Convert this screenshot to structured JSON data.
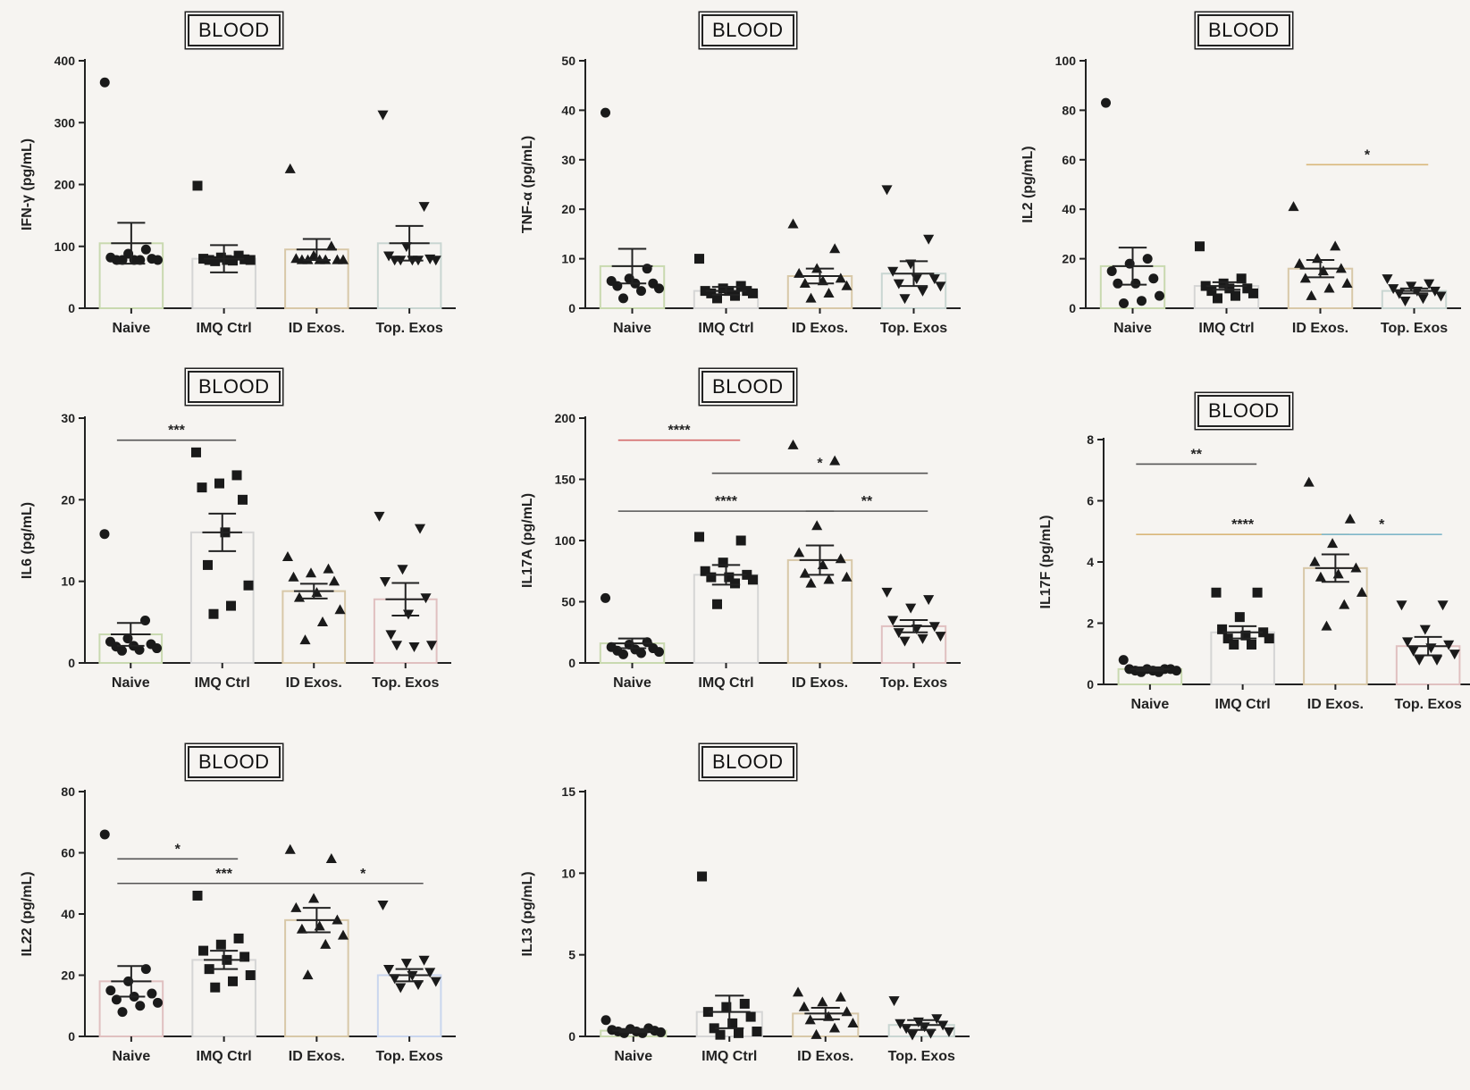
{
  "badge_label": "BLOOD",
  "chart_data": [
    {
      "type": "bar",
      "badge": "BLOOD",
      "ylabel": "IFN-γ (pg/mL)",
      "ylim": [
        0,
        400
      ],
      "yticks": [
        0,
        100,
        200,
        300,
        400
      ],
      "categories": [
        "Naive",
        "IMQ Ctrl",
        "ID Exos.",
        "Top. Exos"
      ],
      "means": [
        105,
        80,
        95,
        105
      ],
      "sem": [
        33,
        22,
        17,
        28
      ],
      "bar_colors": [
        "#c9d9b0",
        "#d5d5d5",
        "#d8c8a8",
        "#c9d6d2"
      ],
      "points": [
        [
          365,
          95,
          88,
          82,
          80,
          78,
          78,
          78,
          78,
          78
        ],
        [
          198,
          85,
          82,
          80,
          79,
          78,
          78,
          78,
          77,
          76
        ],
        [
          225,
          100,
          85,
          80,
          78,
          78,
          78,
          78,
          78,
          78
        ],
        [
          313,
          165,
          100,
          85,
          80,
          78,
          78,
          78,
          78,
          78
        ]
      ],
      "significance": []
    },
    {
      "type": "bar",
      "badge": "BLOOD",
      "ylabel": "TNF-α (pg/mL)",
      "ylim": [
        0,
        50
      ],
      "yticks": [
        0,
        10,
        20,
        30,
        40,
        50
      ],
      "categories": [
        "Naive",
        "IMQ Ctrl",
        "ID Exos.",
        "Top. Exos"
      ],
      "means": [
        8.5,
        3.5,
        6.5,
        7
      ],
      "sem": [
        3.5,
        0.8,
        1.5,
        2.5
      ],
      "bar_colors": [
        "#c9d9b0",
        "#d5d5d5",
        "#d8c8a8",
        "#c9d6d2"
      ],
      "points": [
        [
          39.5,
          8,
          6,
          5.5,
          5,
          5,
          4.5,
          4,
          3.5,
          2
        ],
        [
          10,
          4.5,
          4,
          3.5,
          3.5,
          3.5,
          3,
          3,
          2.5,
          2
        ],
        [
          17,
          12,
          8,
          7,
          6,
          5.5,
          5,
          4.5,
          3,
          2
        ],
        [
          24,
          14,
          9,
          7.5,
          6,
          6,
          5,
          4.5,
          3.5,
          2
        ]
      ],
      "significance": []
    },
    {
      "type": "bar",
      "badge": "BLOOD",
      "ylabel": "IL2 (pg/mL)",
      "ylim": [
        0,
        100
      ],
      "yticks": [
        0,
        20,
        40,
        60,
        80,
        100
      ],
      "categories": [
        "Naive",
        "IMQ Ctrl",
        "ID Exos.",
        "Top. Exos"
      ],
      "means": [
        17,
        9,
        16,
        7
      ],
      "sem": [
        7.5,
        1.5,
        3.5,
        1
      ],
      "bar_colors": [
        "#c9d9b0",
        "#d5d5d5",
        "#d8c8a8",
        "#c9d6d2"
      ],
      "points": [
        [
          83,
          20,
          18,
          15,
          12,
          10,
          10,
          5,
          3,
          2
        ],
        [
          25,
          12,
          10,
          9,
          8,
          8,
          7,
          6,
          5,
          4
        ],
        [
          41,
          25,
          20,
          18,
          16,
          15,
          12,
          10,
          8,
          5
        ],
        [
          12,
          10,
          9,
          8,
          7,
          7,
          6,
          5,
          4,
          3
        ]
      ],
      "significance": [
        {
          "from": 2,
          "to": 3,
          "y": 58,
          "label": "*",
          "color": "#d9b77a"
        }
      ]
    },
    {
      "type": "bar",
      "badge": "BLOOD",
      "ylabel": "IL6 (pg/mL)",
      "ylim": [
        0,
        30
      ],
      "yticks": [
        0,
        10,
        20,
        30
      ],
      "categories": [
        "Naive",
        "IMQ Ctrl",
        "ID Exos.",
        "Top. Exos"
      ],
      "means": [
        3.5,
        16,
        8.8,
        7.8
      ],
      "sem": [
        1.4,
        2.3,
        0.9,
        2
      ],
      "bar_colors": [
        "#c9d9b0",
        "#d5d5d5",
        "#d8c8a8",
        "#e0c0c0"
      ],
      "points": [
        [
          15.8,
          5.2,
          3,
          2.6,
          2.3,
          2.1,
          2,
          1.8,
          1.6,
          1.5
        ],
        [
          25.8,
          23,
          22,
          21.5,
          20,
          16,
          12,
          9.5,
          7,
          6
        ],
        [
          13,
          11.5,
          11,
          10.5,
          10,
          8.6,
          8,
          6.5,
          5,
          2.8
        ],
        [
          18,
          16.5,
          11.5,
          10,
          8,
          6,
          3.5,
          2.2,
          2,
          2.2
        ]
      ],
      "significance": [
        {
          "from": 0,
          "to": 1,
          "y": 27.3,
          "label": "***",
          "color": "#555"
        }
      ]
    },
    {
      "type": "bar",
      "badge": "BLOOD",
      "ylabel": "IL17A (pg/mL)",
      "ylim": [
        0,
        200
      ],
      "yticks": [
        0,
        50,
        100,
        150,
        200
      ],
      "categories": [
        "Naive",
        "IMQ Ctrl",
        "ID Exos.",
        "Top. Exos"
      ],
      "means": [
        16,
        72,
        84,
        30
      ],
      "sem": [
        4,
        8,
        12,
        5
      ],
      "bar_colors": [
        "#c9d9b0",
        "#d5d5d5",
        "#d8c8a8",
        "#e0c0c0"
      ],
      "points": [
        [
          53,
          17,
          15,
          13,
          12,
          11,
          10,
          9,
          8,
          7
        ],
        [
          103,
          100,
          82,
          75,
          72,
          70,
          70,
          68,
          65,
          48
        ],
        [
          178,
          165,
          112,
          90,
          85,
          80,
          73,
          70,
          68,
          65
        ],
        [
          58,
          52,
          45,
          35,
          30,
          28,
          25,
          22,
          20,
          18
        ]
      ],
      "significance": [
        {
          "from": 0,
          "to": 1,
          "y": 182,
          "label": "****",
          "color": "#d46a6a"
        },
        {
          "from": 1,
          "to": 3,
          "y": 155,
          "label": "*",
          "color": "#555"
        },
        {
          "from": 0,
          "to": 2,
          "y": 124,
          "label": "****",
          "color": "#555"
        },
        {
          "from": 2,
          "to": 3,
          "y": 124,
          "label": "**",
          "color": "#555"
        }
      ]
    },
    {
      "type": "bar",
      "badge": "BLOOD",
      "ylabel": "IL17F (pg/mL)",
      "ylim": [
        0,
        8
      ],
      "yticks": [
        0,
        2,
        4,
        6,
        8
      ],
      "categories": [
        "Naive",
        "IMQ Ctrl",
        "ID Exos.",
        "Top. Exos"
      ],
      "means": [
        0.5,
        1.7,
        3.8,
        1.25
      ],
      "sem": [
        0.06,
        0.2,
        0.45,
        0.3
      ],
      "bar_colors": [
        "#c9d9b0",
        "#d5d5d5",
        "#d8c8a8",
        "#e0c0c0"
      ],
      "points": [
        [
          0.8,
          0.5,
          0.5,
          0.5,
          0.5,
          0.45,
          0.45,
          0.45,
          0.4,
          0.4
        ],
        [
          3,
          3,
          2.2,
          1.8,
          1.7,
          1.6,
          1.5,
          1.5,
          1.3,
          1.3
        ],
        [
          6.6,
          5.4,
          4.6,
          4,
          3.8,
          3.6,
          3.5,
          3,
          2.6,
          1.9
        ],
        [
          2.6,
          2.6,
          1.8,
          1.4,
          1.3,
          1.2,
          1.1,
          1,
          0.8,
          0.8
        ]
      ],
      "significance": [
        {
          "from": 0,
          "to": 1,
          "y": 7.2,
          "label": "**",
          "color": "#555"
        },
        {
          "from": 0,
          "to": 2,
          "y": 4.9,
          "label": "****",
          "color": "#d9b77a"
        },
        {
          "from": 2,
          "to": 3,
          "y": 4.9,
          "label": "*",
          "color": "#7fb7c9"
        }
      ]
    },
    {
      "type": "bar",
      "badge": "BLOOD",
      "ylabel": "IL22 (pg/mL)",
      "ylim": [
        0,
        80
      ],
      "yticks": [
        0,
        20,
        40,
        60,
        80
      ],
      "categories": [
        "Naive",
        "IMQ Ctrl",
        "ID Exos.",
        "Top. Exos"
      ],
      "means": [
        18,
        25,
        38,
        20
      ],
      "sem": [
        5,
        3,
        4,
        2
      ],
      "bar_colors": [
        "#e0c0c0",
        "#d5d5d5",
        "#d8c8a8",
        "#c9d6ee"
      ],
      "points": [
        [
          66,
          22,
          18,
          15,
          14,
          13,
          12,
          11,
          10,
          8
        ],
        [
          46,
          32,
          30,
          28,
          26,
          25,
          22,
          20,
          18,
          16
        ],
        [
          61,
          58,
          45,
          42,
          38,
          36,
          35,
          33,
          30,
          20
        ],
        [
          43,
          25,
          24,
          22,
          21,
          20,
          19,
          18,
          17,
          16
        ]
      ],
      "significance": [
        {
          "from": 0,
          "to": 1,
          "y": 58,
          "label": "*",
          "color": "#555"
        },
        {
          "from": 0,
          "to": 2,
          "y": 50,
          "label": "***",
          "color": "#555"
        },
        {
          "from": 2,
          "to": 3,
          "y": 50,
          "label": "*",
          "color": "#555"
        }
      ]
    },
    {
      "type": "bar",
      "badge": "BLOOD",
      "ylabel": "IL13 (pg/mL)",
      "ylim": [
        0,
        15
      ],
      "yticks": [
        0,
        5,
        10,
        15
      ],
      "categories": [
        "Naive",
        "IMQ Ctrl",
        "ID Exos.",
        "Top. Exos"
      ],
      "means": [
        0.35,
        1.5,
        1.4,
        0.7
      ],
      "sem": [
        0.1,
        1,
        0.35,
        0.3
      ],
      "bar_colors": [
        "#c9d9b0",
        "#d5d5d5",
        "#d8c8a8",
        "#c9d6d2"
      ],
      "points": [
        [
          1,
          0.5,
          0.45,
          0.4,
          0.35,
          0.3,
          0.3,
          0.25,
          0.2,
          0.2
        ],
        [
          9.8,
          2,
          1.8,
          1.5,
          1.2,
          0.8,
          0.5,
          0.3,
          0.2,
          0.1
        ],
        [
          2.7,
          2.4,
          2.1,
          1.8,
          1.5,
          1.2,
          1,
          0.8,
          0.5,
          0.1
        ],
        [
          2.2,
          1.1,
          0.9,
          0.8,
          0.7,
          0.6,
          0.5,
          0.3,
          0.2,
          0.1
        ]
      ],
      "significance": []
    }
  ]
}
